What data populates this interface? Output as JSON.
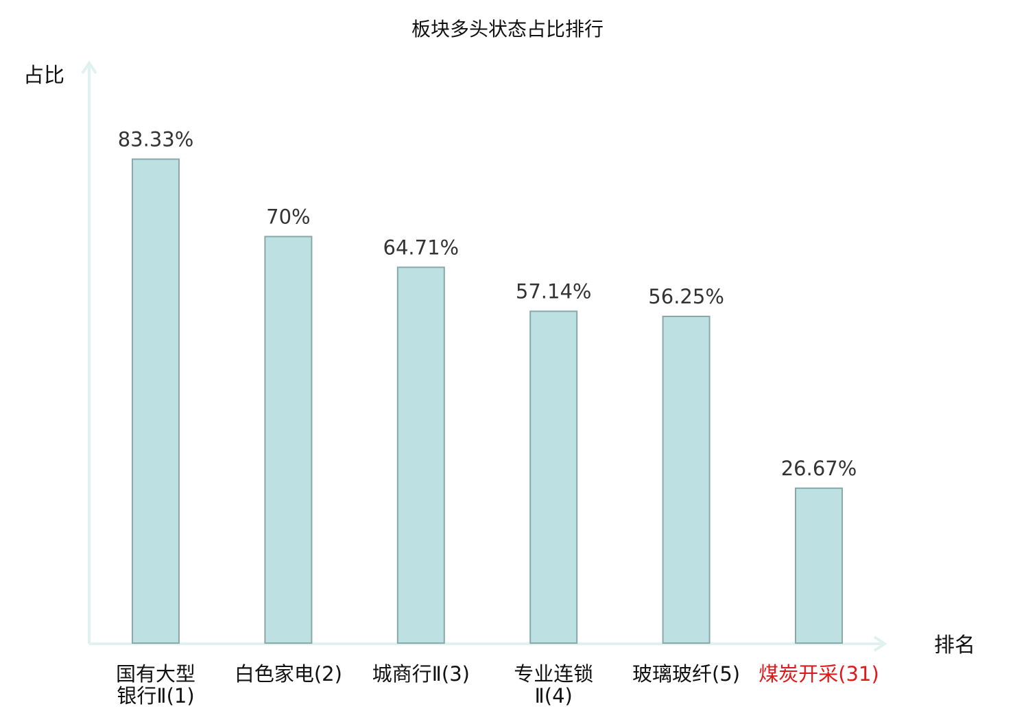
{
  "chart_data": {
    "type": "bar",
    "title": "板块多头状态占比排行",
    "ylabel": "占比",
    "xlabel": "排名",
    "categories": [
      {
        "lines": [
          "国有大型",
          "银行Ⅱ(1)"
        ],
        "highlight": false
      },
      {
        "lines": [
          "白色家电(2)"
        ],
        "highlight": false
      },
      {
        "lines": [
          "城商行Ⅱ(3)"
        ],
        "highlight": false
      },
      {
        "lines": [
          "专业连锁",
          "Ⅱ(4)"
        ],
        "highlight": false
      },
      {
        "lines": [
          "玻璃玻纤(5)"
        ],
        "highlight": false
      },
      {
        "lines": [
          "煤炭开采(31)"
        ],
        "highlight": true
      }
    ],
    "values": [
      83.33,
      70,
      64.71,
      57.14,
      56.25,
      26.67
    ],
    "value_labels": [
      "83.33%",
      "70%",
      "64.71%",
      "57.14%",
      "56.25%",
      "26.67%"
    ],
    "ylim": [
      0,
      100
    ],
    "grid": false,
    "colors": {
      "bar_fill": "#bde0e2",
      "bar_stroke": "#8aa7a9",
      "axis": "#e0f2ef",
      "text": "#333333",
      "highlight": "#e0191b"
    }
  }
}
